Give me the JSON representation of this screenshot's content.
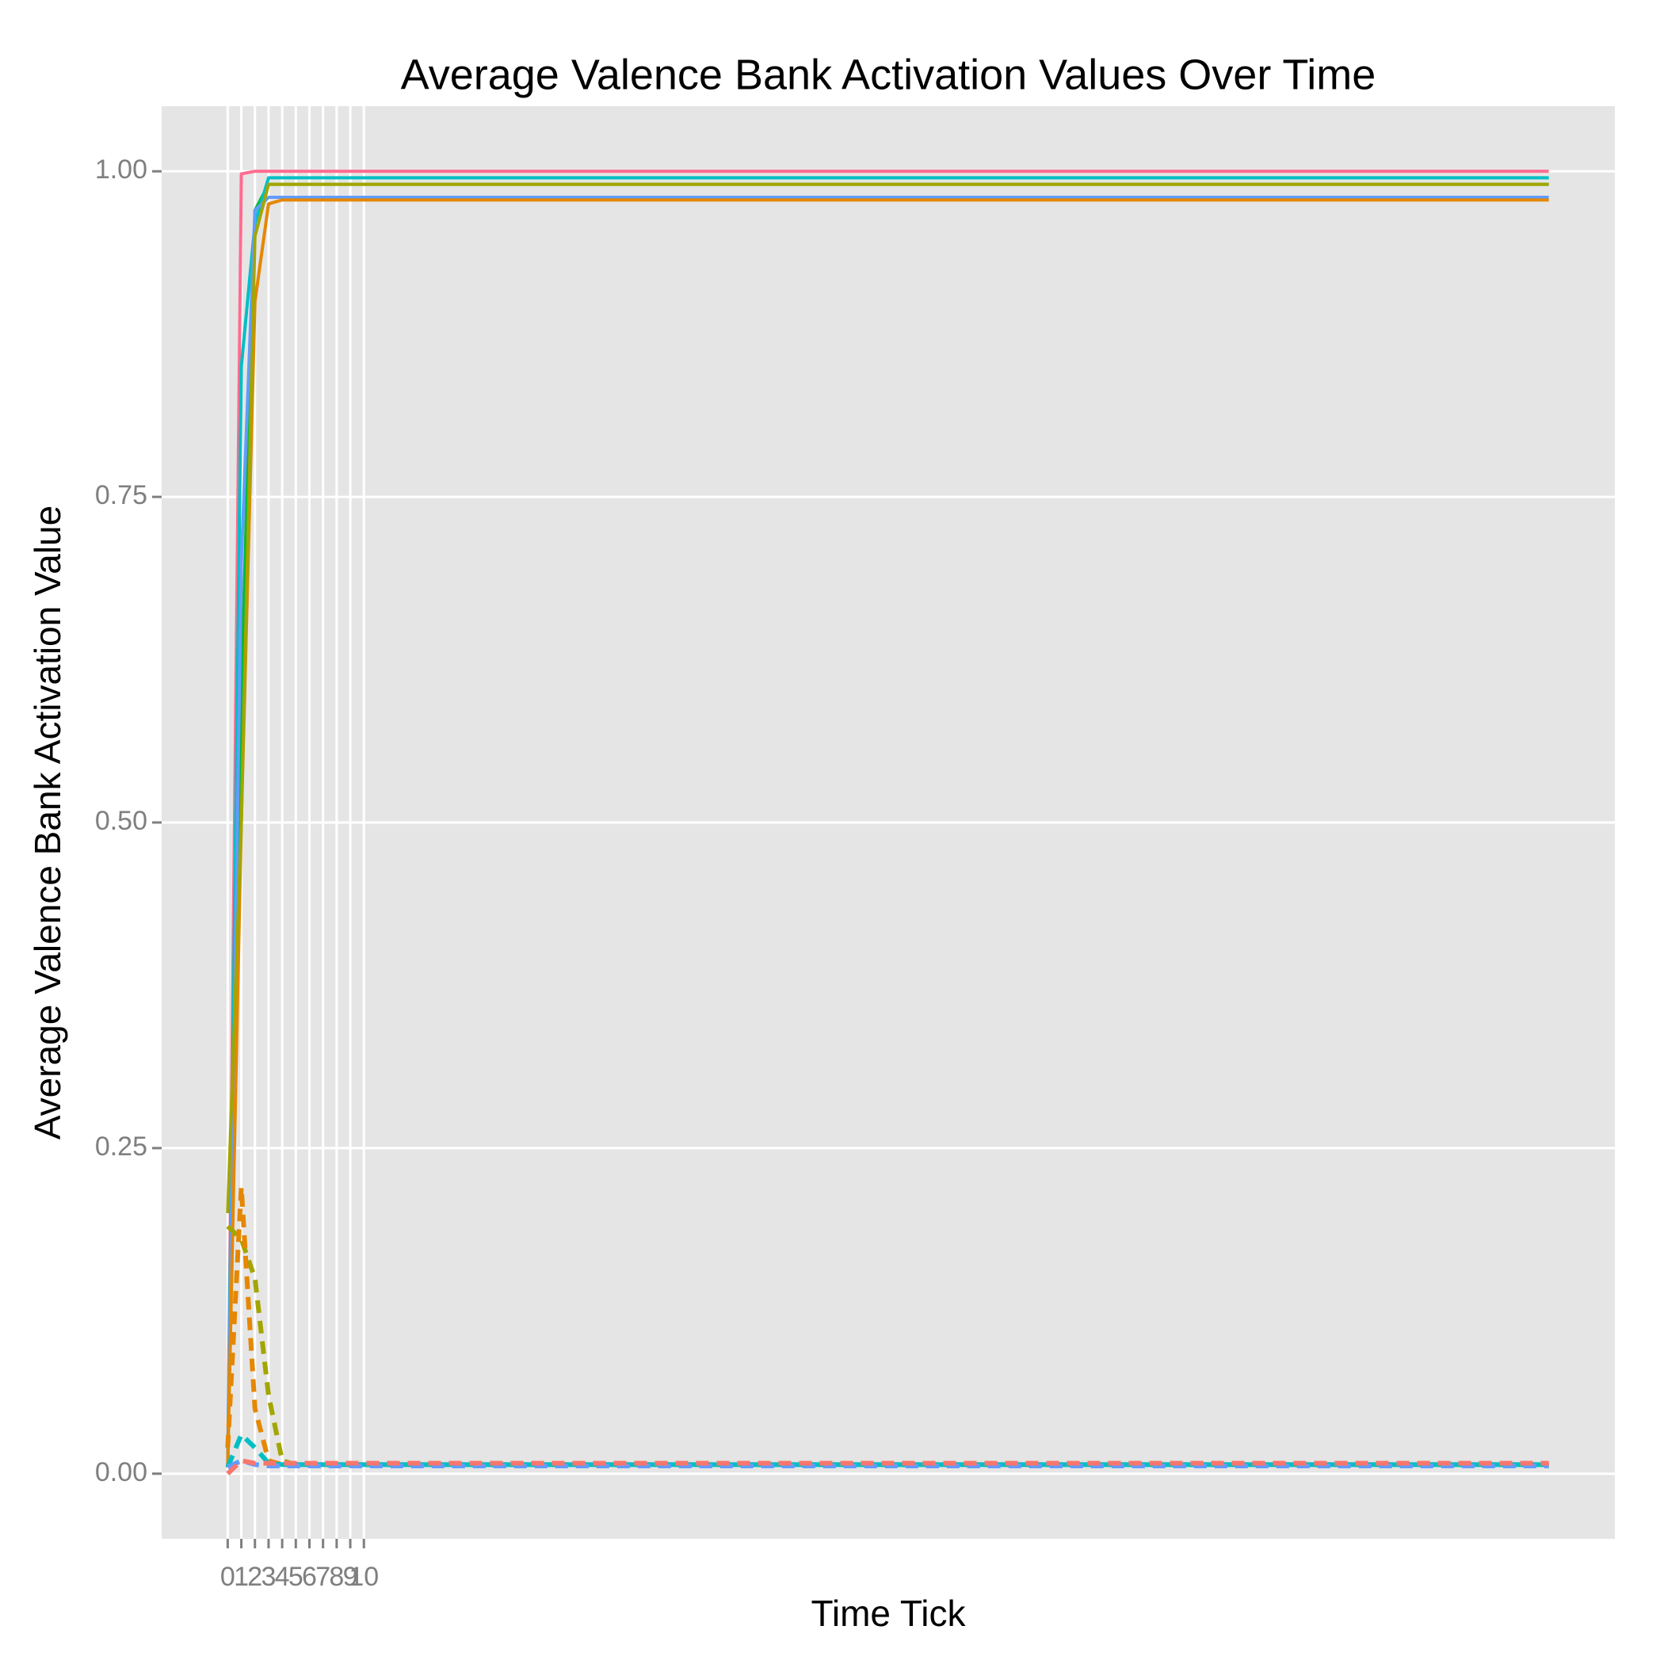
{
  "chart_data": {
    "type": "line",
    "title": "Average Valence Bank Activation Values Over Time",
    "x_label": "Time Tick",
    "y_label": "Average Valence Bank Activation Value",
    "x": [
      0,
      1,
      2,
      3,
      4,
      5,
      6,
      7,
      8,
      9,
      10,
      97
    ],
    "series": [
      {
        "color": "#FF6C91",
        "linetype": "solid",
        "values": [
          0.005,
          0.998,
          1.0,
          1.0,
          1.0,
          1.0,
          1.0,
          1.0,
          1.0,
          1.0,
          1.0,
          1.0
        ]
      },
      {
        "color": "#00BA38",
        "linetype": "solid",
        "values": [
          0.005,
          0.6,
          0.97,
          0.99,
          0.99,
          0.99,
          0.99,
          0.99,
          0.99,
          0.99,
          0.99,
          0.99
        ]
      },
      {
        "color": "#00BFC4",
        "linetype": "solid",
        "values": [
          0.005,
          0.85,
          0.96,
          0.995,
          0.995,
          0.995,
          0.995,
          0.995,
          0.995,
          0.995,
          0.995,
          0.995
        ]
      },
      {
        "color": "#619CFF",
        "linetype": "solid",
        "values": [
          0.005,
          0.7,
          0.97,
          0.98,
          0.98,
          0.98,
          0.98,
          0.98,
          0.98,
          0.98,
          0.98,
          0.98
        ]
      },
      {
        "color": "#E58700",
        "linetype": "solid",
        "values": [
          0.005,
          0.5,
          0.9,
          0.975,
          0.978,
          0.978,
          0.978,
          0.978,
          0.978,
          0.978,
          0.978,
          0.978
        ]
      },
      {
        "color": "#A3A500",
        "linetype": "solid",
        "values": [
          0.2,
          0.5,
          0.95,
          0.99,
          0.99,
          0.99,
          0.99,
          0.99,
          0.99,
          0.99,
          0.99,
          0.99
        ]
      },
      {
        "color": "#A3A500",
        "linetype": "dashed",
        "values": [
          0.19,
          0.18,
          0.15,
          0.06,
          0.01,
          0.007,
          0.007,
          0.007,
          0.007,
          0.007,
          0.007,
          0.007
        ]
      },
      {
        "color": "#E58700",
        "linetype": "dashed",
        "values": [
          0.02,
          0.22,
          0.05,
          0.01,
          0.007,
          0.007,
          0.007,
          0.007,
          0.007,
          0.007,
          0.007,
          0.007
        ]
      },
      {
        "color": "#00BFC4",
        "linetype": "dashed",
        "values": [
          0.005,
          0.03,
          0.02,
          0.008,
          0.007,
          0.007,
          0.007,
          0.007,
          0.007,
          0.007,
          0.007,
          0.007
        ]
      },
      {
        "color": "#619CFF",
        "linetype": "dashed",
        "values": [
          0.005,
          0.01,
          0.007,
          0.006,
          0.006,
          0.006,
          0.006,
          0.006,
          0.006,
          0.006,
          0.006,
          0.006
        ]
      },
      {
        "color": "#F8766D",
        "linetype": "dashed",
        "values": [
          0.0,
          0.01,
          0.008,
          0.008,
          0.008,
          0.008,
          0.008,
          0.008,
          0.008,
          0.008,
          0.008,
          0.008
        ]
      }
    ],
    "xlim": [
      -4.85,
      101.85
    ],
    "ylim": [
      -0.05,
      1.05
    ],
    "xticks": [
      0,
      1,
      2,
      3,
      4,
      5,
      6,
      7,
      8,
      9,
      10
    ],
    "yticks": [
      {
        "value": 0,
        "label": "0.00"
      },
      {
        "value": 0.25,
        "label": "0.25"
      },
      {
        "value": 0.5,
        "label": "0.50"
      },
      {
        "value": 0.75,
        "label": "0.75"
      },
      {
        "value": 1,
        "label": "1.00"
      }
    ],
    "grid": true
  }
}
